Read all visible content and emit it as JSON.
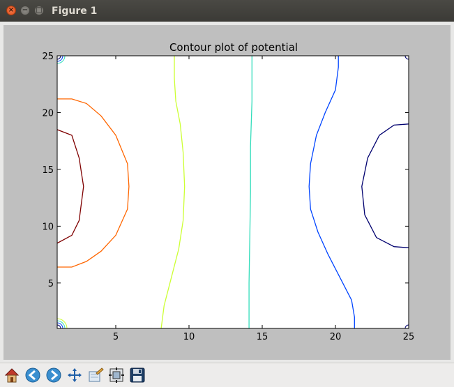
{
  "window": {
    "title": "Figure 1"
  },
  "toolbar": {
    "buttons": [
      {
        "icon": "home-icon"
      },
      {
        "icon": "back-icon"
      },
      {
        "icon": "forward-icon"
      },
      {
        "icon": "pan-icon"
      },
      {
        "icon": "zoom-icon"
      },
      {
        "icon": "configure-subplots-icon"
      },
      {
        "icon": "save-icon"
      }
    ]
  },
  "colors": {
    "figure_bg": "#bfbfbf",
    "axes_bg": "#ffffff"
  },
  "chart_data": {
    "type": "contour",
    "title": "Contour plot of potential",
    "xlabel": "",
    "ylabel": "",
    "xlim": [
      1,
      25
    ],
    "ylim": [
      1,
      25
    ],
    "xticks": [
      5,
      10,
      15,
      20,
      25
    ],
    "yticks": [
      5,
      10,
      15,
      20,
      25
    ],
    "grid": false,
    "contours": [
      {
        "color": "#7f0000",
        "points": [
          [
            1,
            18.5
          ],
          [
            2,
            18
          ],
          [
            2.5,
            16
          ],
          [
            2.8,
            13.5
          ],
          [
            2.5,
            10.5
          ],
          [
            2,
            9.2
          ],
          [
            1,
            8.5
          ]
        ]
      },
      {
        "color": "#ff6600",
        "points": [
          [
            1,
            21.2
          ],
          [
            2,
            21.2
          ],
          [
            3,
            20.8
          ],
          [
            4,
            19.7
          ],
          [
            5,
            18
          ],
          [
            5.8,
            15.5
          ],
          [
            5.9,
            13.5
          ],
          [
            5.8,
            11.5
          ],
          [
            5,
            9.2
          ],
          [
            4,
            7.8
          ],
          [
            3,
            6.9
          ],
          [
            2,
            6.4
          ],
          [
            1,
            6.4
          ]
        ]
      },
      {
        "color": "#ccff33",
        "points": [
          [
            9,
            25
          ],
          [
            9,
            23
          ],
          [
            9.1,
            21
          ],
          [
            9.4,
            19
          ],
          [
            9.6,
            16.5
          ],
          [
            9.7,
            13.5
          ],
          [
            9.6,
            10.5
          ],
          [
            9.3,
            8
          ],
          [
            8.8,
            5.5
          ],
          [
            8.3,
            3
          ],
          [
            8.1,
            1
          ]
        ]
      },
      {
        "color": "#33ddbb",
        "points": [
          [
            14.3,
            25
          ],
          [
            14.3,
            21
          ],
          [
            14.2,
            17
          ],
          [
            14.2,
            13
          ],
          [
            14.15,
            9
          ],
          [
            14.1,
            5
          ],
          [
            14.1,
            1
          ]
        ]
      },
      {
        "color": "#0044ff",
        "points": [
          [
            20.2,
            25
          ],
          [
            20.2,
            24
          ],
          [
            20,
            22
          ],
          [
            19.3,
            20
          ],
          [
            18.7,
            18
          ],
          [
            18.3,
            15.5
          ],
          [
            18.2,
            13.5
          ],
          [
            18.3,
            11.5
          ],
          [
            18.8,
            9.5
          ],
          [
            19.5,
            7.5
          ],
          [
            20.3,
            5.5
          ],
          [
            21.1,
            3.5
          ],
          [
            21.3,
            2
          ],
          [
            21.3,
            1
          ]
        ]
      },
      {
        "color": "#00006f",
        "points": [
          [
            25,
            19
          ],
          [
            24,
            18.9
          ],
          [
            23,
            18
          ],
          [
            22.2,
            16
          ],
          [
            21.8,
            13.5
          ],
          [
            22,
            11
          ],
          [
            22.8,
            9
          ],
          [
            24,
            8.2
          ],
          [
            25,
            8.1
          ]
        ]
      }
    ],
    "corner_contours": {
      "top_left_colors": [
        "#00006f",
        "#0044ff",
        "#33ddbb"
      ],
      "bottom_left_colors": [
        "#00006f",
        "#0044ff",
        "#33ddbb",
        "#ccff33"
      ],
      "top_right_colors": [
        "#00006f"
      ],
      "bottom_right_colors": [
        "#00006f"
      ]
    }
  }
}
